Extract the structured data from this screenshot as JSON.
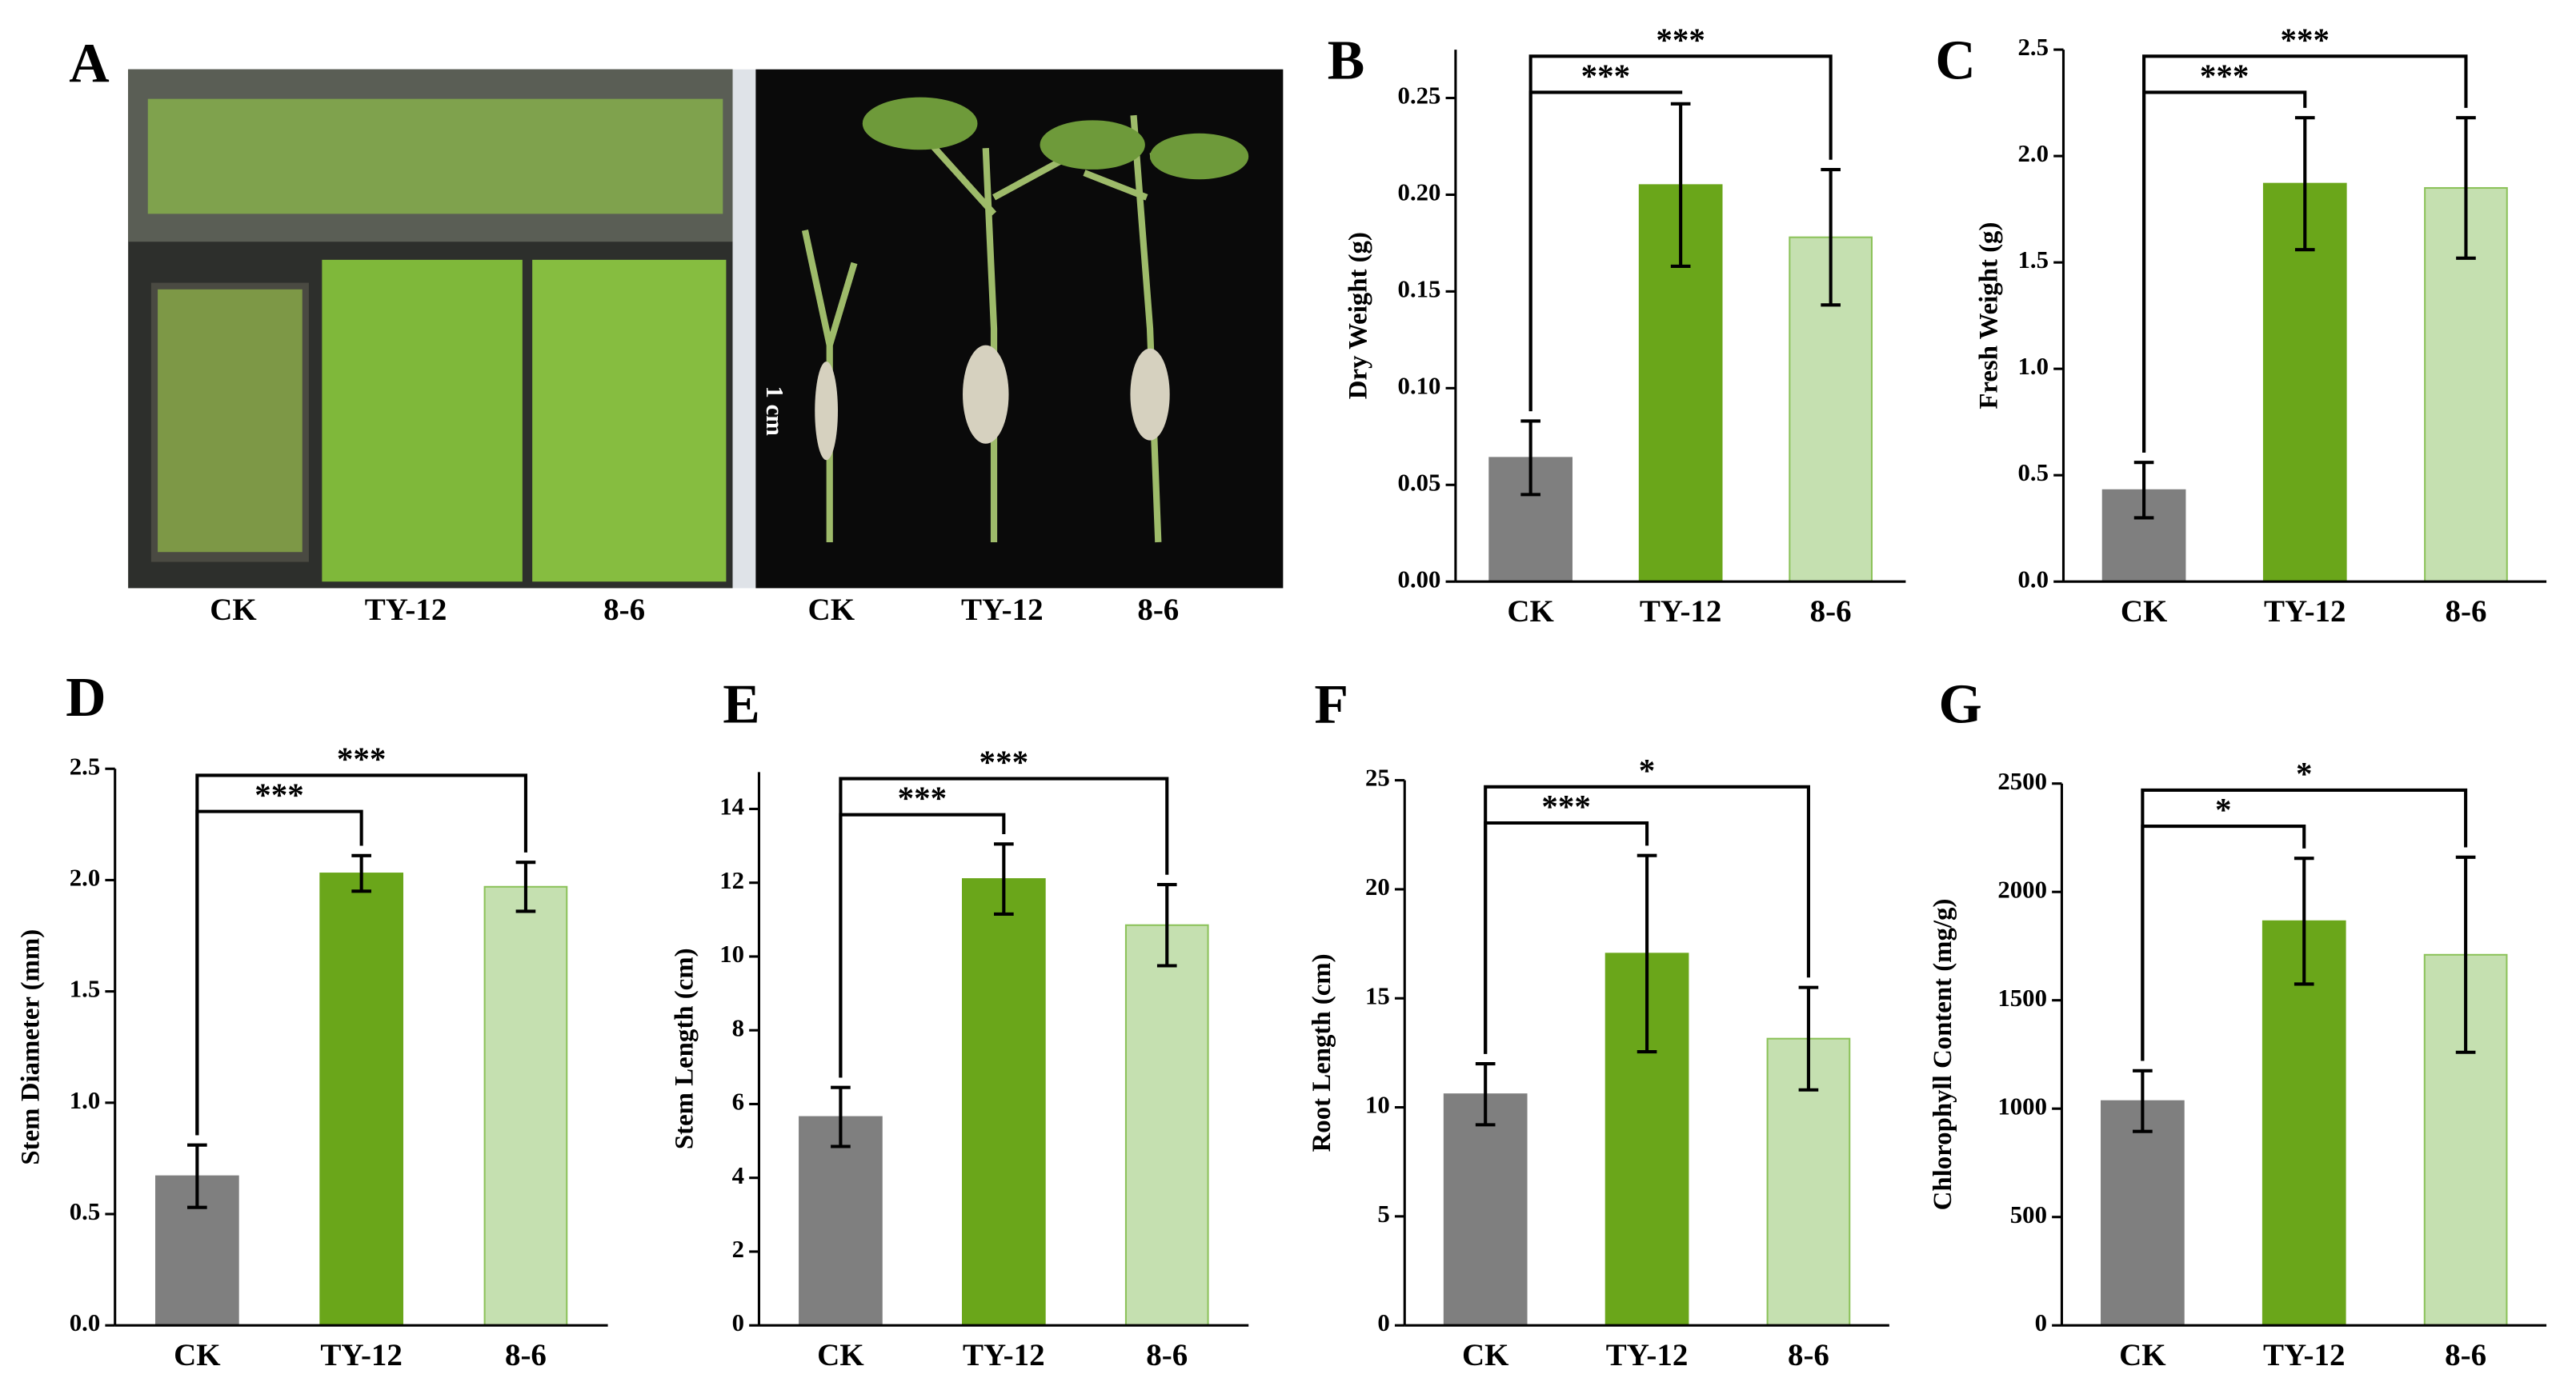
{
  "panel_a": {
    "label": "A",
    "scale_label": "1 cm",
    "left_labels": [
      "CK",
      "TY-12",
      "8-6"
    ],
    "right_labels": [
      "CK",
      "TY-12",
      "8-6"
    ]
  },
  "chart_data": [
    {
      "type": "bar",
      "label": "B",
      "ylabel": "Dry Weight (g)",
      "categories": [
        "CK",
        "TY-12",
        "8-6"
      ],
      "values": [
        0.064,
        0.205,
        0.178
      ],
      "errors": [
        0.019,
        0.042,
        0.035
      ],
      "colors": [
        "#7f7f7f",
        "#6aa61a",
        "#c5e0b0"
      ],
      "ylim": [
        0,
        0.275
      ],
      "yticks": [
        {
          "value": 0,
          "label": "0.00"
        },
        0.05,
        {
          "value": 0.1,
          "label": "0.10"
        },
        0.15,
        {
          "value": 0.2,
          "label": "0.20"
        },
        0.25
      ],
      "significance": [
        {
          "to": 1,
          "label": "***"
        },
        {
          "to": 2,
          "label": "***"
        }
      ]
    },
    {
      "type": "bar",
      "label": "C",
      "ylabel": "Fresh Weight (g)",
      "categories": [
        "CK",
        "TY-12",
        "8-6"
      ],
      "values": [
        0.43,
        1.87,
        1.85
      ],
      "errors": [
        0.13,
        0.31,
        0.33
      ],
      "colors": [
        "#7f7f7f",
        "#6aa61a",
        "#c5e0b0"
      ],
      "ylim": [
        0,
        2.5
      ],
      "yticks": [
        {
          "value": 0,
          "label": "0.0"
        },
        0.5,
        {
          "value": 1,
          "label": "1.0"
        },
        1.5,
        {
          "value": 2,
          "label": "2.0"
        },
        2.5
      ],
      "significance": [
        {
          "to": 1,
          "label": "***"
        },
        {
          "to": 2,
          "label": "***"
        }
      ]
    },
    {
      "type": "bar",
      "label": "D",
      "ylabel": "Stem Diameter (mm)",
      "categories": [
        "CK",
        "TY-12",
        "8-6"
      ],
      "values": [
        0.67,
        2.03,
        1.97
      ],
      "errors": [
        0.14,
        0.08,
        0.11
      ],
      "colors": [
        "#7f7f7f",
        "#6aa61a",
        "#c5e0b0"
      ],
      "ylim": [
        0,
        2.5
      ],
      "yticks": [
        {
          "value": 0,
          "label": "0.0"
        },
        0.5,
        {
          "value": 1,
          "label": "1.0"
        },
        1.5,
        {
          "value": 2,
          "label": "2.0"
        },
        2.5
      ],
      "significance": [
        {
          "to": 1,
          "label": "***"
        },
        {
          "to": 2,
          "label": "***"
        }
      ]
    },
    {
      "type": "bar",
      "label": "E",
      "ylabel": "Stem Length (cm)",
      "categories": [
        "CK",
        "TY-12",
        "8-6"
      ],
      "values": [
        5.65,
        12.1,
        10.85
      ],
      "errors": [
        0.8,
        0.95,
        1.1
      ],
      "colors": [
        "#7f7f7f",
        "#6aa61a",
        "#c5e0b0"
      ],
      "ylim": [
        0,
        15
      ],
      "yticks": [
        0,
        2,
        4,
        6,
        8,
        10,
        12,
        14
      ],
      "significance": [
        {
          "to": 1,
          "label": "***"
        },
        {
          "to": 2,
          "label": "***"
        }
      ]
    },
    {
      "type": "bar",
      "label": "F",
      "ylabel": "Root Length (cm)",
      "categories": [
        "CK",
        "TY-12",
        "8-6"
      ],
      "values": [
        10.6,
        17.05,
        13.15
      ],
      "errors": [
        1.4,
        4.5,
        2.35
      ],
      "colors": [
        "#7f7f7f",
        "#6aa61a",
        "#c5e0b0"
      ],
      "ylim": [
        0,
        25
      ],
      "yticks": [
        0,
        5,
        10,
        15,
        20,
        25
      ],
      "significance": [
        {
          "to": 1,
          "label": "***"
        },
        {
          "to": 2,
          "label": "*"
        }
      ]
    },
    {
      "type": "bar",
      "label": "G",
      "ylabel": "Chlorophyll Content (mg/g)",
      "categories": [
        "CK",
        "TY-12",
        "8-6"
      ],
      "values": [
        1035,
        1865,
        1710
      ],
      "errors": [
        140,
        290,
        450
      ],
      "colors": [
        "#7f7f7f",
        "#6aa61a",
        "#c5e0b0"
      ],
      "ylim": [
        0,
        2500
      ],
      "yticks": [
        0,
        500,
        1000,
        1500,
        2000,
        2500
      ],
      "significance": [
        {
          "to": 1,
          "label": "*"
        },
        {
          "to": 2,
          "label": "*"
        }
      ]
    }
  ]
}
